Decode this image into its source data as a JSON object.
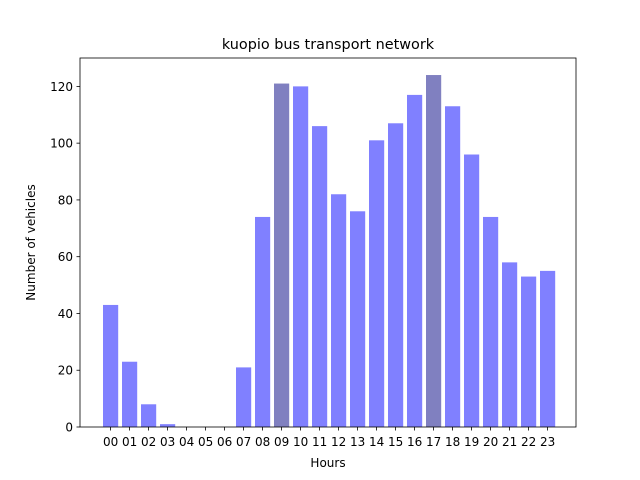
{
  "chart_data": {
    "type": "bar",
    "title": "kuopio bus transport network",
    "xlabel": "Hours",
    "ylabel": "Number of vehicles",
    "ylim": [
      0,
      130
    ],
    "yticks": [
      0,
      20,
      40,
      60,
      80,
      100,
      120
    ],
    "grid": false,
    "categories": [
      "00",
      "01",
      "02",
      "03",
      "04",
      "05",
      "06",
      "07",
      "08",
      "09",
      "10",
      "11",
      "12",
      "13",
      "14",
      "15",
      "16",
      "17",
      "18",
      "19",
      "20",
      "21",
      "22",
      "23"
    ],
    "values": [
      43,
      23,
      8,
      1,
      0,
      0,
      0,
      21,
      74,
      121,
      120,
      106,
      82,
      76,
      101,
      107,
      117,
      124,
      113,
      96,
      74,
      58,
      53,
      55
    ],
    "bar_color": "#8080ff",
    "highlight_color": "#8080c0",
    "highlight_categories": [
      "09",
      "17"
    ]
  }
}
